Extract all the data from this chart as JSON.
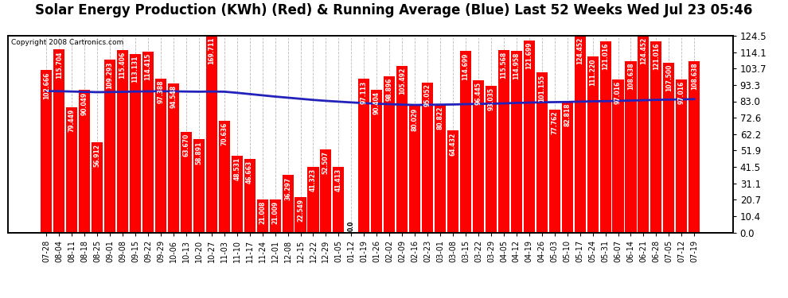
{
  "title": "Solar Energy Production (KWh) (Red) & Running Average (Blue) Last 52 Weeks Wed Jul 23 05:46",
  "copyright": "Copyright 2008 Cartronics.com",
  "bar_color": "#ff0000",
  "line_color": "#2222bb",
  "background_color": "#ffffff",
  "grid_color": "#bbbbbb",
  "categories": [
    "07-28",
    "08-04",
    "08-11",
    "08-18",
    "08-25",
    "09-01",
    "09-08",
    "09-15",
    "09-22",
    "09-29",
    "10-06",
    "10-13",
    "10-20",
    "10-27",
    "11-03",
    "11-10",
    "11-17",
    "11-24",
    "12-01",
    "12-08",
    "12-15",
    "12-22",
    "12-29",
    "01-05",
    "01-12",
    "01-19",
    "01-26",
    "02-02",
    "02-09",
    "02-16",
    "02-23",
    "03-01",
    "03-08",
    "03-15",
    "03-22",
    "03-29",
    "04-05",
    "04-12",
    "04-19",
    "04-26",
    "05-03",
    "05-10",
    "05-17",
    "05-24",
    "05-31",
    "06-07",
    "06-14",
    "06-21",
    "06-28",
    "07-05",
    "07-12",
    "07-19"
  ],
  "values": [
    102.666,
    115.704,
    79.449,
    90.049,
    56.912,
    109.293,
    115.406,
    113.131,
    114.415,
    97.388,
    94.548,
    63.67,
    58.891,
    169.711,
    70.636,
    48.531,
    46.663,
    21.008,
    21.009,
    36.297,
    22.549,
    41.323,
    52.507,
    41.413,
    0.0,
    97.113,
    90.404,
    98.896,
    105.492,
    80.029,
    95.052,
    80.822,
    64.432,
    114.699,
    96.445,
    93.035,
    115.568,
    114.958,
    121.699,
    101.155,
    77.762,
    82.818,
    124.452,
    111.22,
    121.016,
    97.016,
    108.638,
    124.452,
    121.016,
    107.5,
    97.016,
    108.638
  ],
  "running_avg": [
    89.5,
    89.4,
    89.2,
    89.0,
    88.8,
    88.9,
    89.0,
    89.2,
    89.3,
    89.4,
    89.3,
    89.2,
    89.1,
    89.2,
    89.1,
    88.4,
    87.6,
    86.8,
    86.0,
    85.3,
    84.6,
    83.9,
    83.3,
    82.8,
    82.3,
    81.9,
    81.5,
    81.2,
    80.9,
    80.7,
    80.8,
    80.9,
    81.0,
    81.2,
    81.4,
    81.5,
    81.7,
    82.0,
    82.2,
    82.4,
    82.5,
    82.6,
    82.8,
    83.0,
    83.1,
    83.3,
    83.5,
    83.7,
    83.9,
    84.1,
    84.2,
    84.4
  ],
  "yticks": [
    0.0,
    10.4,
    20.7,
    31.1,
    41.5,
    51.9,
    62.2,
    72.6,
    83.0,
    93.3,
    103.7,
    114.1,
    124.5
  ],
  "ylim_max": 124.5,
  "title_fontsize": 12,
  "label_fontsize": 5.5,
  "tick_fontsize": 8.5,
  "copyright_fontsize": 6.5
}
